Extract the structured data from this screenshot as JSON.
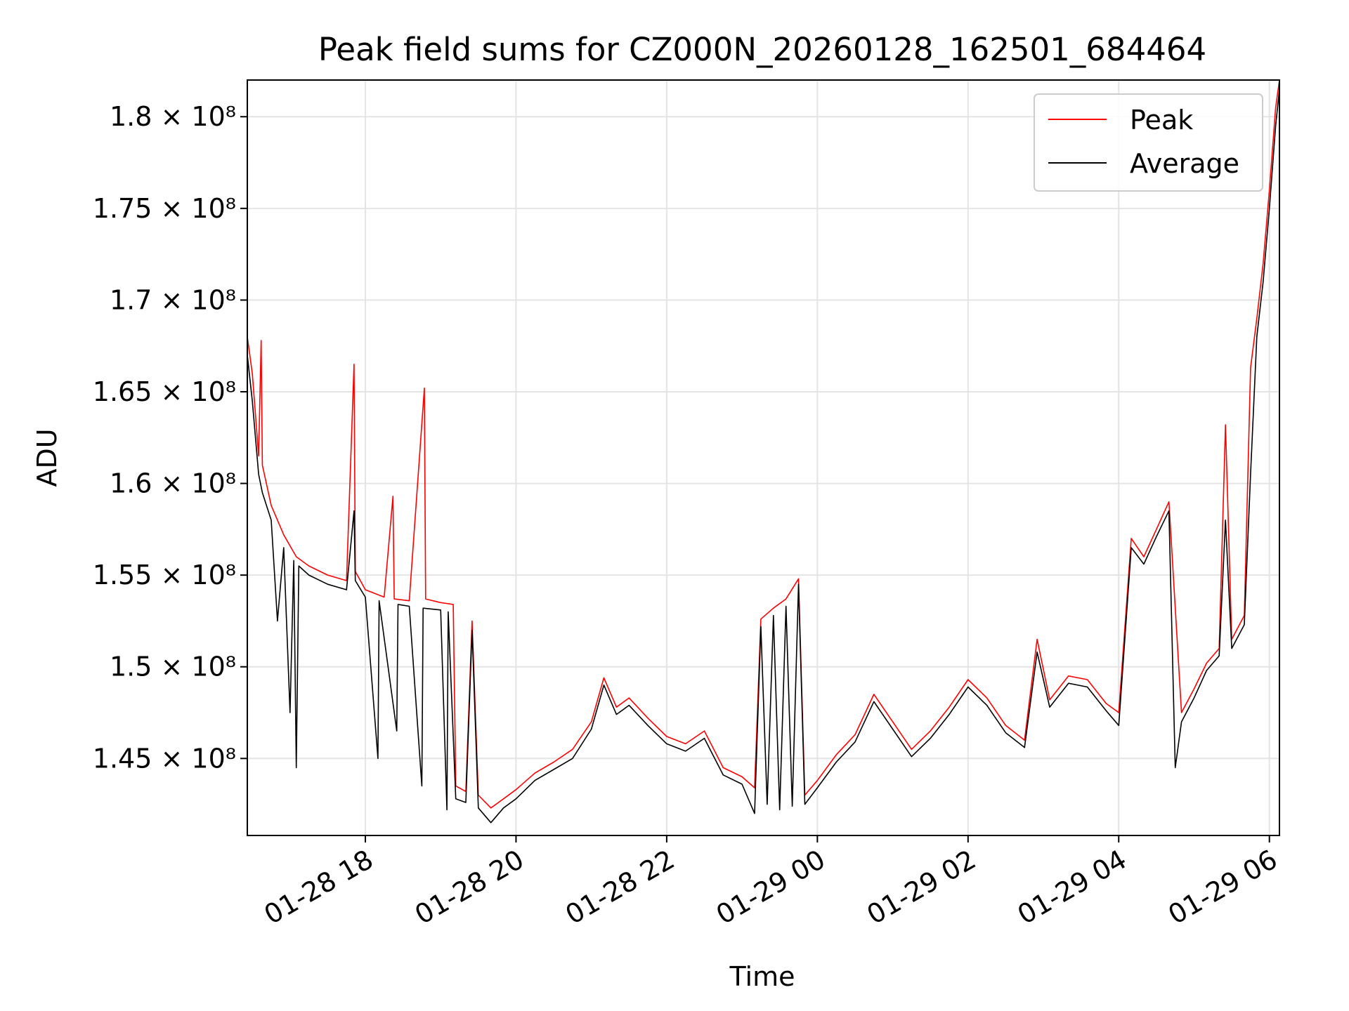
{
  "chart_data": {
    "type": "line",
    "title": "Peak field sums for CZ000N_20260128_162501_684464",
    "xlabel": "Time",
    "ylabel": "ADU",
    "grid": true,
    "legend_position": "upper right",
    "xlim": [
      "2026-01-28 16:26",
      "2026-01-29 06:08"
    ],
    "ylim": [
      140800000,
      182000000
    ],
    "x_ticks": [
      {
        "value": "2026-01-28 18:00",
        "label": "01-28 18"
      },
      {
        "value": "2026-01-28 20:00",
        "label": "01-28 20"
      },
      {
        "value": "2026-01-28 22:00",
        "label": "01-28 22"
      },
      {
        "value": "2026-01-29 00:00",
        "label": "01-29 00"
      },
      {
        "value": "2026-01-29 02:00",
        "label": "01-29 02"
      },
      {
        "value": "2026-01-29 04:00",
        "label": "01-29 04"
      },
      {
        "value": "2026-01-29 06:00",
        "label": "01-29 06"
      }
    ],
    "y_ticks": [
      {
        "value": 145000000,
        "label": "1.45 × 10⁸"
      },
      {
        "value": 150000000,
        "label": "1.5 × 10⁸"
      },
      {
        "value": 155000000,
        "label": "1.55 × 10⁸"
      },
      {
        "value": 160000000,
        "label": "1.6 × 10⁸"
      },
      {
        "value": 165000000,
        "label": "1.65 × 10⁸"
      },
      {
        "value": 170000000,
        "label": "1.7 × 10⁸"
      },
      {
        "value": 175000000,
        "label": "1.75 × 10⁸"
      },
      {
        "value": 180000000,
        "label": "1.8 × 10⁸"
      }
    ],
    "series": [
      {
        "name": "Peak",
        "color": "#ff0000",
        "points": [
          [
            "2026-01-28 16:26",
            168000000
          ],
          [
            "2026-01-28 16:30",
            166000000
          ],
          [
            "2026-01-28 16:35",
            161500000
          ],
          [
            "2026-01-28 16:37",
            167800000
          ],
          [
            "2026-01-28 16:38",
            161000000
          ],
          [
            "2026-01-28 16:45",
            158800000
          ],
          [
            "2026-01-28 16:55",
            157200000
          ],
          [
            "2026-01-28 17:05",
            156000000
          ],
          [
            "2026-01-28 17:15",
            155500000
          ],
          [
            "2026-01-28 17:30",
            155000000
          ],
          [
            "2026-01-28 17:45",
            154700000
          ],
          [
            "2026-01-28 17:51",
            166500000
          ],
          [
            "2026-01-28 17:52",
            155200000
          ],
          [
            "2026-01-28 18:00",
            154200000
          ],
          [
            "2026-01-28 18:15",
            153800000
          ],
          [
            "2026-01-28 18:22",
            159300000
          ],
          [
            "2026-01-28 18:23",
            153700000
          ],
          [
            "2026-01-28 18:35",
            153600000
          ],
          [
            "2026-01-28 18:47",
            165200000
          ],
          [
            "2026-01-28 18:48",
            153700000
          ],
          [
            "2026-01-28 19:00",
            153500000
          ],
          [
            "2026-01-28 19:10",
            153400000
          ],
          [
            "2026-01-28 19:12",
            143500000
          ],
          [
            "2026-01-28 19:20",
            143200000
          ],
          [
            "2026-01-28 19:25",
            152500000
          ],
          [
            "2026-01-28 19:30",
            143000000
          ],
          [
            "2026-01-28 19:40",
            142300000
          ],
          [
            "2026-01-28 19:50",
            142800000
          ],
          [
            "2026-01-28 20:00",
            143300000
          ],
          [
            "2026-01-28 20:15",
            144200000
          ],
          [
            "2026-01-28 20:30",
            144800000
          ],
          [
            "2026-01-28 20:45",
            145500000
          ],
          [
            "2026-01-28 21:00",
            147000000
          ],
          [
            "2026-01-28 21:10",
            149400000
          ],
          [
            "2026-01-28 21:20",
            147800000
          ],
          [
            "2026-01-28 21:30",
            148300000
          ],
          [
            "2026-01-28 21:45",
            147200000
          ],
          [
            "2026-01-28 22:00",
            146200000
          ],
          [
            "2026-01-28 22:15",
            145800000
          ],
          [
            "2026-01-28 22:30",
            146500000
          ],
          [
            "2026-01-28 22:45",
            144500000
          ],
          [
            "2026-01-28 23:00",
            144000000
          ],
          [
            "2026-01-28 23:10",
            143400000
          ],
          [
            "2026-01-28 23:15",
            152600000
          ],
          [
            "2026-01-28 23:25",
            153200000
          ],
          [
            "2026-01-28 23:35",
            153700000
          ],
          [
            "2026-01-28 23:45",
            154800000
          ],
          [
            "2026-01-28 23:50",
            143000000
          ],
          [
            "2026-01-29 00:00",
            143800000
          ],
          [
            "2026-01-29 00:15",
            145200000
          ],
          [
            "2026-01-29 00:30",
            146300000
          ],
          [
            "2026-01-29 00:45",
            148500000
          ],
          [
            "2026-01-29 01:00",
            147000000
          ],
          [
            "2026-01-29 01:15",
            145500000
          ],
          [
            "2026-01-29 01:30",
            146500000
          ],
          [
            "2026-01-29 01:45",
            147800000
          ],
          [
            "2026-01-29 02:00",
            149300000
          ],
          [
            "2026-01-29 02:15",
            148300000
          ],
          [
            "2026-01-29 02:30",
            146800000
          ],
          [
            "2026-01-29 02:45",
            146000000
          ],
          [
            "2026-01-29 02:55",
            151500000
          ],
          [
            "2026-01-29 03:05",
            148200000
          ],
          [
            "2026-01-29 03:20",
            149500000
          ],
          [
            "2026-01-29 03:35",
            149300000
          ],
          [
            "2026-01-29 03:50",
            148000000
          ],
          [
            "2026-01-29 04:00",
            147500000
          ],
          [
            "2026-01-29 04:10",
            157000000
          ],
          [
            "2026-01-29 04:20",
            156000000
          ],
          [
            "2026-01-29 04:30",
            157500000
          ],
          [
            "2026-01-29 04:40",
            159000000
          ],
          [
            "2026-01-29 04:50",
            147500000
          ],
          [
            "2026-01-29 05:00",
            148800000
          ],
          [
            "2026-01-29 05:10",
            150200000
          ],
          [
            "2026-01-29 05:20",
            151000000
          ],
          [
            "2026-01-29 05:25",
            163200000
          ],
          [
            "2026-01-29 05:30",
            151500000
          ],
          [
            "2026-01-29 05:40",
            152800000
          ],
          [
            "2026-01-29 05:45",
            166300000
          ],
          [
            "2026-01-29 05:50",
            169000000
          ],
          [
            "2026-01-29 05:55",
            172000000
          ],
          [
            "2026-01-29 06:00",
            176000000
          ],
          [
            "2026-01-29 06:05",
            180500000
          ],
          [
            "2026-01-29 06:08",
            182000000
          ]
        ]
      },
      {
        "name": "Average",
        "color": "#000000",
        "points": [
          [
            "2026-01-28 16:26",
            167000000
          ],
          [
            "2026-01-28 16:30",
            164500000
          ],
          [
            "2026-01-28 16:35",
            160500000
          ],
          [
            "2026-01-28 16:38",
            159500000
          ],
          [
            "2026-01-28 16:45",
            158000000
          ],
          [
            "2026-01-28 16:50",
            152500000
          ],
          [
            "2026-01-28 16:55",
            156500000
          ],
          [
            "2026-01-28 17:00",
            147500000
          ],
          [
            "2026-01-28 17:03",
            155800000
          ],
          [
            "2026-01-28 17:05",
            144500000
          ],
          [
            "2026-01-28 17:07",
            155500000
          ],
          [
            "2026-01-28 17:15",
            155000000
          ],
          [
            "2026-01-28 17:30",
            154500000
          ],
          [
            "2026-01-28 17:45",
            154200000
          ],
          [
            "2026-01-28 17:51",
            158500000
          ],
          [
            "2026-01-28 17:52",
            154700000
          ],
          [
            "2026-01-28 18:00",
            153800000
          ],
          [
            "2026-01-28 18:10",
            145000000
          ],
          [
            "2026-01-28 18:11",
            153600000
          ],
          [
            "2026-01-28 18:25",
            146500000
          ],
          [
            "2026-01-28 18:26",
            153400000
          ],
          [
            "2026-01-28 18:35",
            153300000
          ],
          [
            "2026-01-28 18:45",
            143500000
          ],
          [
            "2026-01-28 18:46",
            153200000
          ],
          [
            "2026-01-28 19:00",
            153100000
          ],
          [
            "2026-01-28 19:05",
            142200000
          ],
          [
            "2026-01-28 19:06",
            153000000
          ],
          [
            "2026-01-28 19:12",
            142800000
          ],
          [
            "2026-01-28 19:20",
            142600000
          ],
          [
            "2026-01-28 19:25",
            152000000
          ],
          [
            "2026-01-28 19:30",
            142300000
          ],
          [
            "2026-01-28 19:40",
            141500000
          ],
          [
            "2026-01-28 19:50",
            142300000
          ],
          [
            "2026-01-28 20:00",
            142800000
          ],
          [
            "2026-01-28 20:15",
            143800000
          ],
          [
            "2026-01-28 20:30",
            144400000
          ],
          [
            "2026-01-28 20:45",
            145000000
          ],
          [
            "2026-01-28 21:00",
            146600000
          ],
          [
            "2026-01-28 21:10",
            149000000
          ],
          [
            "2026-01-28 21:20",
            147400000
          ],
          [
            "2026-01-28 21:30",
            147900000
          ],
          [
            "2026-01-28 21:45",
            146800000
          ],
          [
            "2026-01-28 22:00",
            145800000
          ],
          [
            "2026-01-28 22:15",
            145400000
          ],
          [
            "2026-01-28 22:30",
            146100000
          ],
          [
            "2026-01-28 22:45",
            144100000
          ],
          [
            "2026-01-28 23:00",
            143600000
          ],
          [
            "2026-01-28 23:10",
            142000000
          ],
          [
            "2026-01-28 23:15",
            152200000
          ],
          [
            "2026-01-28 23:20",
            142500000
          ],
          [
            "2026-01-28 23:25",
            152800000
          ],
          [
            "2026-01-28 23:30",
            142200000
          ],
          [
            "2026-01-28 23:35",
            153300000
          ],
          [
            "2026-01-28 23:40",
            142400000
          ],
          [
            "2026-01-28 23:45",
            154500000
          ],
          [
            "2026-01-28 23:50",
            142500000
          ],
          [
            "2026-01-29 00:00",
            143400000
          ],
          [
            "2026-01-29 00:15",
            144800000
          ],
          [
            "2026-01-29 00:30",
            145900000
          ],
          [
            "2026-01-29 00:45",
            148100000
          ],
          [
            "2026-01-29 01:00",
            146600000
          ],
          [
            "2026-01-29 01:15",
            145100000
          ],
          [
            "2026-01-29 01:30",
            146100000
          ],
          [
            "2026-01-29 01:45",
            147400000
          ],
          [
            "2026-01-29 02:00",
            148900000
          ],
          [
            "2026-01-29 02:15",
            147900000
          ],
          [
            "2026-01-29 02:30",
            146400000
          ],
          [
            "2026-01-29 02:45",
            145600000
          ],
          [
            "2026-01-29 02:55",
            150800000
          ],
          [
            "2026-01-29 03:05",
            147800000
          ],
          [
            "2026-01-29 03:20",
            149100000
          ],
          [
            "2026-01-29 03:35",
            148900000
          ],
          [
            "2026-01-29 03:50",
            147600000
          ],
          [
            "2026-01-29 04:00",
            146800000
          ],
          [
            "2026-01-29 04:10",
            156500000
          ],
          [
            "2026-01-29 04:20",
            155600000
          ],
          [
            "2026-01-29 04:30",
            157100000
          ],
          [
            "2026-01-29 04:40",
            158500000
          ],
          [
            "2026-01-29 04:45",
            144500000
          ],
          [
            "2026-01-29 04:50",
            147000000
          ],
          [
            "2026-01-29 05:00",
            148300000
          ],
          [
            "2026-01-29 05:10",
            149800000
          ],
          [
            "2026-01-29 05:20",
            150600000
          ],
          [
            "2026-01-29 05:25",
            158000000
          ],
          [
            "2026-01-29 05:30",
            151000000
          ],
          [
            "2026-01-29 05:40",
            152300000
          ],
          [
            "2026-01-29 05:45",
            160500000
          ],
          [
            "2026-01-29 05:50",
            168000000
          ],
          [
            "2026-01-29 05:55",
            171000000
          ],
          [
            "2026-01-29 06:00",
            175000000
          ],
          [
            "2026-01-29 06:05",
            179500000
          ],
          [
            "2026-01-29 06:08",
            181500000
          ]
        ]
      }
    ]
  }
}
